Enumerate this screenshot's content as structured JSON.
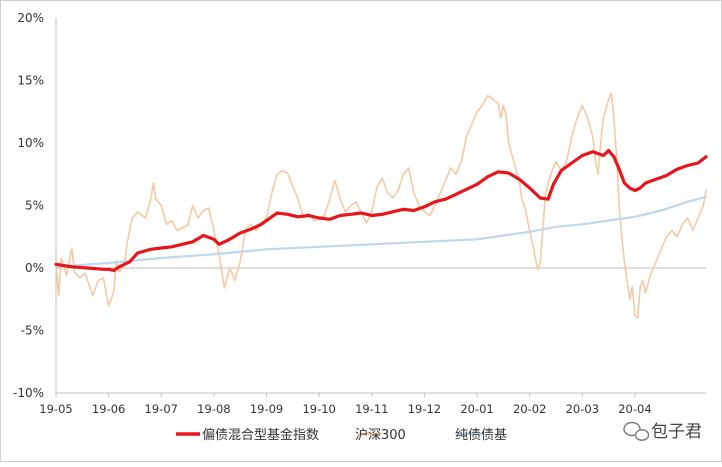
{
  "chart_data": {
    "type": "line",
    "yaxis": {
      "min": -10,
      "max": 20,
      "step": 5,
      "unit": "%",
      "tick_labels": [
        "-10%",
        "-5%",
        "0%",
        "5%",
        "10%",
        "15%",
        "20%"
      ]
    },
    "x_tick_labels": [
      "19-05",
      "19-06",
      "19-07",
      "19-08",
      "19-09",
      "19-10",
      "19-11",
      "19-12",
      "20-01",
      "20-02",
      "20-03",
      "20-04"
    ],
    "x_end_index": 12.35,
    "series": [
      {
        "name": "偏债混合型基金指数",
        "color": "#e8151b",
        "width": 3.2,
        "points": [
          [
            0,
            0.3
          ],
          [
            0.3,
            0.1
          ],
          [
            0.6,
            0
          ],
          [
            0.9,
            -0.1
          ],
          [
            1.0,
            -0.1
          ],
          [
            1.1,
            -0.2
          ],
          [
            1.2,
            0.1
          ],
          [
            1.4,
            0.5
          ],
          [
            1.55,
            1.2
          ],
          [
            1.8,
            1.5
          ],
          [
            2.0,
            1.6
          ],
          [
            2.2,
            1.7
          ],
          [
            2.4,
            1.9
          ],
          [
            2.6,
            2.1
          ],
          [
            2.8,
            2.6
          ],
          [
            3.0,
            2.3
          ],
          [
            3.1,
            1.9
          ],
          [
            3.3,
            2.3
          ],
          [
            3.5,
            2.8
          ],
          [
            3.7,
            3.1
          ],
          [
            3.9,
            3.5
          ],
          [
            4.1,
            4.1
          ],
          [
            4.2,
            4.4
          ],
          [
            4.4,
            4.3
          ],
          [
            4.6,
            4.1
          ],
          [
            4.8,
            4.2
          ],
          [
            5.0,
            4.0
          ],
          [
            5.2,
            3.9
          ],
          [
            5.4,
            4.2
          ],
          [
            5.6,
            4.3
          ],
          [
            5.8,
            4.4
          ],
          [
            6.0,
            4.2
          ],
          [
            6.2,
            4.3
          ],
          [
            6.4,
            4.5
          ],
          [
            6.6,
            4.7
          ],
          [
            6.8,
            4.6
          ],
          [
            7.0,
            4.9
          ],
          [
            7.2,
            5.3
          ],
          [
            7.4,
            5.5
          ],
          [
            7.6,
            5.9
          ],
          [
            7.8,
            6.3
          ],
          [
            8.0,
            6.7
          ],
          [
            8.2,
            7.3
          ],
          [
            8.4,
            7.7
          ],
          [
            8.6,
            7.6
          ],
          [
            8.8,
            7.1
          ],
          [
            9.0,
            6.4
          ],
          [
            9.2,
            5.6
          ],
          [
            9.35,
            5.5
          ],
          [
            9.45,
            6.7
          ],
          [
            9.6,
            7.8
          ],
          [
            9.8,
            8.4
          ],
          [
            10.0,
            9.0
          ],
          [
            10.2,
            9.3
          ],
          [
            10.4,
            9.0
          ],
          [
            10.5,
            9.4
          ],
          [
            10.6,
            8.9
          ],
          [
            10.7,
            7.9
          ],
          [
            10.8,
            6.8
          ],
          [
            10.9,
            6.4
          ],
          [
            11.0,
            6.2
          ],
          [
            11.1,
            6.4
          ],
          [
            11.2,
            6.8
          ],
          [
            11.4,
            7.1
          ],
          [
            11.6,
            7.4
          ],
          [
            11.8,
            7.9
          ],
          [
            12.0,
            8.2
          ],
          [
            12.2,
            8.4
          ],
          [
            12.35,
            8.9
          ]
        ]
      },
      {
        "name": "沪深300",
        "color": "#f7c9a2",
        "width": 1.6,
        "points": [
          [
            0,
            0.6
          ],
          [
            0.05,
            -2.2
          ],
          [
            0.1,
            0.8
          ],
          [
            0.2,
            -0.6
          ],
          [
            0.3,
            1.6
          ],
          [
            0.35,
            -0.3
          ],
          [
            0.45,
            -0.8
          ],
          [
            0.55,
            -0.4
          ],
          [
            0.7,
            -2.2
          ],
          [
            0.8,
            -1.0
          ],
          [
            0.9,
            -0.8
          ],
          [
            1.0,
            -3.0
          ],
          [
            1.05,
            -2.5
          ],
          [
            1.1,
            -1.8
          ],
          [
            1.15,
            0.6
          ],
          [
            1.2,
            -0.3
          ],
          [
            1.3,
            0.2
          ],
          [
            1.35,
            2.0
          ],
          [
            1.45,
            4.0
          ],
          [
            1.55,
            4.5
          ],
          [
            1.7,
            4.0
          ],
          [
            1.8,
            5.5
          ],
          [
            1.85,
            6.8
          ],
          [
            1.9,
            5.5
          ],
          [
            2.0,
            5.0
          ],
          [
            2.1,
            3.5
          ],
          [
            2.2,
            3.8
          ],
          [
            2.3,
            3.0
          ],
          [
            2.4,
            3.2
          ],
          [
            2.5,
            3.4
          ],
          [
            2.6,
            5.0
          ],
          [
            2.7,
            4.0
          ],
          [
            2.8,
            4.6
          ],
          [
            2.9,
            4.8
          ],
          [
            3.0,
            3.0
          ],
          [
            3.1,
            1.0
          ],
          [
            3.2,
            -1.6
          ],
          [
            3.3,
            0.0
          ],
          [
            3.4,
            -1.0
          ],
          [
            3.5,
            0.5
          ],
          [
            3.6,
            3.0
          ],
          [
            3.7,
            3.5
          ],
          [
            3.8,
            3.0
          ],
          [
            3.9,
            3.6
          ],
          [
            4.0,
            4.0
          ],
          [
            4.1,
            6.0
          ],
          [
            4.2,
            7.5
          ],
          [
            4.3,
            7.8
          ],
          [
            4.4,
            7.6
          ],
          [
            4.5,
            6.5
          ],
          [
            4.6,
            5.5
          ],
          [
            4.7,
            4.0
          ],
          [
            4.8,
            4.4
          ],
          [
            4.9,
            3.8
          ],
          [
            5.0,
            3.9
          ],
          [
            5.1,
            4.2
          ],
          [
            5.2,
            5.5
          ],
          [
            5.3,
            7.0
          ],
          [
            5.4,
            5.5
          ],
          [
            5.5,
            4.5
          ],
          [
            5.6,
            5.0
          ],
          [
            5.7,
            5.3
          ],
          [
            5.8,
            4.4
          ],
          [
            5.9,
            3.6
          ],
          [
            6.0,
            4.5
          ],
          [
            6.1,
            6.5
          ],
          [
            6.2,
            7.2
          ],
          [
            6.3,
            6.0
          ],
          [
            6.4,
            5.6
          ],
          [
            6.5,
            6.2
          ],
          [
            6.6,
            7.5
          ],
          [
            6.7,
            8.0
          ],
          [
            6.8,
            6.0
          ],
          [
            6.9,
            5.0
          ],
          [
            7.0,
            4.5
          ],
          [
            7.1,
            4.2
          ],
          [
            7.2,
            5.0
          ],
          [
            7.3,
            6.0
          ],
          [
            7.4,
            7.0
          ],
          [
            7.5,
            8.0
          ],
          [
            7.6,
            7.5
          ],
          [
            7.7,
            8.5
          ],
          [
            7.8,
            10.5
          ],
          [
            7.9,
            11.5
          ],
          [
            8.0,
            12.5
          ],
          [
            8.1,
            13.0
          ],
          [
            8.2,
            13.8
          ],
          [
            8.3,
            13.5
          ],
          [
            8.4,
            13.2
          ],
          [
            8.45,
            12.0
          ],
          [
            8.5,
            13.0
          ],
          [
            8.55,
            12.3
          ],
          [
            8.6,
            10.0
          ],
          [
            8.7,
            8.5
          ],
          [
            8.8,
            7.0
          ],
          [
            8.85,
            5.5
          ],
          [
            8.9,
            5.0
          ],
          [
            9.0,
            3.0
          ],
          [
            9.1,
            1.0
          ],
          [
            9.15,
            -0.1
          ],
          [
            9.2,
            0.4
          ],
          [
            9.25,
            3.0
          ],
          [
            9.3,
            6.0
          ],
          [
            9.4,
            7.5
          ],
          [
            9.5,
            8.5
          ],
          [
            9.6,
            7.8
          ],
          [
            9.7,
            8.5
          ],
          [
            9.8,
            10.5
          ],
          [
            9.9,
            12.0
          ],
          [
            10.0,
            13.0
          ],
          [
            10.1,
            12.0
          ],
          [
            10.2,
            10.5
          ],
          [
            10.25,
            8.5
          ],
          [
            10.3,
            7.5
          ],
          [
            10.35,
            10.0
          ],
          [
            10.4,
            12.0
          ],
          [
            10.5,
            13.5
          ],
          [
            10.55,
            14.0
          ],
          [
            10.6,
            12.0
          ],
          [
            10.65,
            9.0
          ],
          [
            10.7,
            5.0
          ],
          [
            10.75,
            2.5
          ],
          [
            10.8,
            0.5
          ],
          [
            10.85,
            -1.0
          ],
          [
            10.9,
            -2.5
          ],
          [
            10.95,
            -1.5
          ],
          [
            11.0,
            -3.8
          ],
          [
            11.05,
            -4.0
          ],
          [
            11.1,
            -1.5
          ],
          [
            11.15,
            -1.0
          ],
          [
            11.2,
            -2.0
          ],
          [
            11.3,
            -0.5
          ],
          [
            11.4,
            0.5
          ],
          [
            11.5,
            1.5
          ],
          [
            11.6,
            2.5
          ],
          [
            11.7,
            3.0
          ],
          [
            11.8,
            2.5
          ],
          [
            11.9,
            3.5
          ],
          [
            12.0,
            4.0
          ],
          [
            12.1,
            3.0
          ],
          [
            12.2,
            4.0
          ],
          [
            12.3,
            5.0
          ],
          [
            12.35,
            6.2
          ]
        ]
      },
      {
        "name": "纯债债基",
        "color": "#bcd8ef",
        "width": 2.2,
        "points": [
          [
            0,
            0.1
          ],
          [
            1.0,
            0.4
          ],
          [
            2.0,
            0.8
          ],
          [
            3.0,
            1.1
          ],
          [
            4.0,
            1.5
          ],
          [
            5.0,
            1.7
          ],
          [
            6.0,
            1.9
          ],
          [
            7.0,
            2.1
          ],
          [
            8.0,
            2.3
          ],
          [
            8.5,
            2.6
          ],
          [
            9.0,
            2.9
          ],
          [
            9.5,
            3.3
          ],
          [
            10.0,
            3.5
          ],
          [
            10.5,
            3.8
          ],
          [
            11.0,
            4.1
          ],
          [
            11.5,
            4.6
          ],
          [
            12.0,
            5.3
          ],
          [
            12.35,
            5.7
          ]
        ]
      }
    ]
  },
  "watermark": {
    "text": "包子君",
    "icon": "wechat-icon"
  }
}
